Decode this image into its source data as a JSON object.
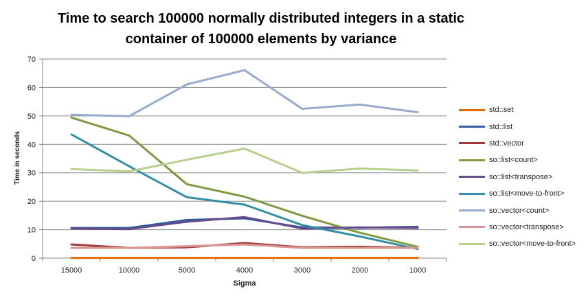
{
  "chart_data": {
    "type": "line",
    "title_line1": "Time to search 100000 normally distributed integers in a static",
    "title_line2": "container of 100000 elements by variance",
    "xlabel": "Sigma",
    "ylabel": "Time in seconds",
    "categories": [
      "15000",
      "10000",
      "5000",
      "4000",
      "3000",
      "2000",
      "1000"
    ],
    "ylim": [
      0,
      70
    ],
    "yticks": [
      0,
      10,
      20,
      30,
      40,
      50,
      60,
      70
    ],
    "grid": true,
    "legend_position": "right",
    "series": [
      {
        "name": "std::set",
        "color": "#E46C0A",
        "values": [
          0.1,
          0.1,
          0.1,
          0.1,
          0.1,
          0.1,
          0.1
        ]
      },
      {
        "name": "std::list",
        "color": "#2C5C9E",
        "values": [
          10.6,
          10.6,
          13.4,
          14.0,
          10.8,
          10.7,
          11.0
        ]
      },
      {
        "name": "std::vector",
        "color": "#A33836",
        "values": [
          4.8,
          3.6,
          3.8,
          5.3,
          3.8,
          4.0,
          3.6
        ]
      },
      {
        "name": "so::list<count>",
        "color": "#7F9A3D",
        "values": [
          49.4,
          43.1,
          26.0,
          21.6,
          14.9,
          8.9,
          4.0
        ]
      },
      {
        "name": "so::list<transpose>",
        "color": "#664A8C",
        "values": [
          10.4,
          10.2,
          12.8,
          14.4,
          10.4,
          10.8,
          10.6
        ]
      },
      {
        "name": "so::list<move-to-front>",
        "color": "#3190A8",
        "values": [
          43.5,
          32.3,
          21.4,
          18.8,
          11.6,
          7.6,
          3.2
        ]
      },
      {
        "name": "so::vector<count>",
        "color": "#94AACE",
        "values": [
          50.4,
          49.9,
          61.1,
          66.1,
          52.5,
          54.0,
          51.3
        ]
      },
      {
        "name": "so::vector<transpose>",
        "color": "#DA9694",
        "values": [
          3.6,
          3.6,
          4.2,
          4.8,
          3.6,
          3.6,
          3.6
        ]
      },
      {
        "name": "so::vector<move-to-front>",
        "color": "#B8CF8C",
        "values": [
          31.3,
          30.5,
          34.6,
          38.5,
          30.0,
          31.5,
          30.8
        ]
      }
    ]
  }
}
